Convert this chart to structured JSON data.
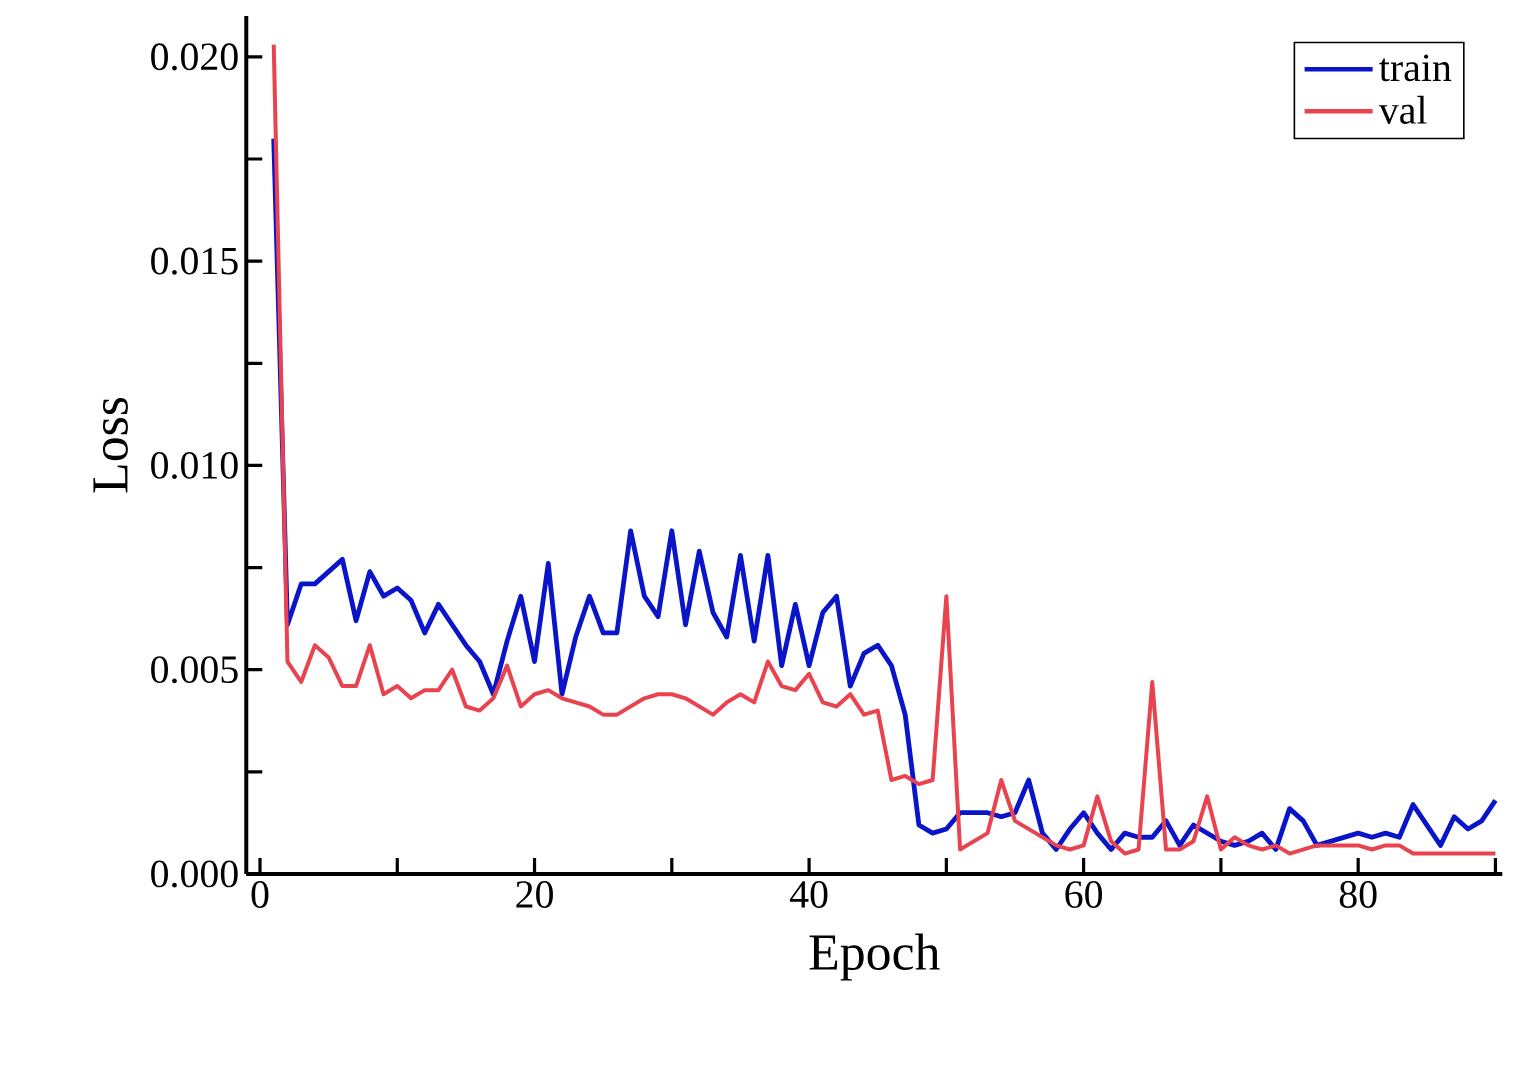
{
  "chart_data": {
    "type": "line",
    "xlabel": "Epoch",
    "ylabel": "Loss",
    "x": [
      1,
      2,
      3,
      4,
      5,
      6,
      7,
      8,
      9,
      10,
      11,
      12,
      13,
      14,
      15,
      16,
      17,
      18,
      19,
      20,
      21,
      22,
      23,
      24,
      25,
      26,
      27,
      28,
      29,
      30,
      31,
      32,
      33,
      34,
      35,
      36,
      37,
      38,
      39,
      40,
      41,
      42,
      43,
      44,
      45,
      46,
      47,
      48,
      49,
      50,
      51,
      52,
      53,
      54,
      55,
      56,
      57,
      58,
      59,
      60,
      61,
      62,
      63,
      64,
      65,
      66,
      67,
      68,
      69,
      70,
      71,
      72,
      73,
      74,
      75,
      76,
      77,
      78,
      79,
      80,
      81,
      82,
      83,
      84,
      85,
      86,
      87,
      88,
      89,
      90
    ],
    "series": [
      {
        "name": "train",
        "color": "#0a14c8",
        "values": [
          0.018,
          0.0061,
          0.0071,
          0.0071,
          0.0074,
          0.0077,
          0.0062,
          0.0074,
          0.0068,
          0.007,
          0.0067,
          0.0059,
          0.0066,
          0.0061,
          0.0056,
          0.0052,
          0.0044,
          0.0057,
          0.0068,
          0.0052,
          0.0076,
          0.0044,
          0.0058,
          0.0068,
          0.0059,
          0.0059,
          0.0084,
          0.0068,
          0.0063,
          0.0084,
          0.0061,
          0.0079,
          0.0064,
          0.0058,
          0.0078,
          0.0057,
          0.0078,
          0.0051,
          0.0066,
          0.0051,
          0.0064,
          0.0068,
          0.0046,
          0.0054,
          0.0056,
          0.0051,
          0.0039,
          0.0012,
          0.001,
          0.0011,
          0.0015,
          0.0015,
          0.0015,
          0.0014,
          0.0015,
          0.0023,
          0.001,
          0.0006,
          0.0011,
          0.0015,
          0.001,
          0.0006,
          0.001,
          0.0009,
          0.0009,
          0.0013,
          0.0007,
          0.0012,
          0.001,
          0.0008,
          0.0007,
          0.0008,
          0.001,
          0.0006,
          0.0016,
          0.0013,
          0.0007,
          0.0008,
          0.0009,
          0.001,
          0.0009,
          0.001,
          0.0009,
          0.0017,
          0.0012,
          0.0007,
          0.0014,
          0.0011,
          0.0013,
          0.0018
        ]
      },
      {
        "name": "val",
        "color": "#e8434f",
        "values": [
          0.0203,
          0.0052,
          0.0047,
          0.0056,
          0.0053,
          0.0046,
          0.0046,
          0.0056,
          0.0044,
          0.0046,
          0.0043,
          0.0045,
          0.0045,
          0.005,
          0.0041,
          0.004,
          0.0043,
          0.0051,
          0.0041,
          0.0044,
          0.0045,
          0.0043,
          0.0042,
          0.0041,
          0.0039,
          0.0039,
          0.0041,
          0.0043,
          0.0044,
          0.0044,
          0.0043,
          0.0041,
          0.0039,
          0.0042,
          0.0044,
          0.0042,
          0.0052,
          0.0046,
          0.0045,
          0.0049,
          0.0042,
          0.0041,
          0.0044,
          0.0039,
          0.004,
          0.0023,
          0.0024,
          0.0022,
          0.0023,
          0.0068,
          0.0006,
          0.0008,
          0.001,
          0.0023,
          0.0013,
          0.0011,
          0.0009,
          0.0007,
          0.0006,
          0.0007,
          0.0019,
          0.0008,
          0.0005,
          0.0006,
          0.0047,
          0.0006,
          0.0006,
          0.0008,
          0.0019,
          0.0006,
          0.0009,
          0.0007,
          0.0006,
          0.0007,
          0.0005,
          0.0006,
          0.0007,
          0.0007,
          0.0007,
          0.0007,
          0.0006,
          0.0007,
          0.0007,
          0.0005,
          0.0005,
          0.0005,
          0.0005,
          0.0005,
          0.0005,
          0.0005
        ]
      }
    ],
    "xlim": [
      -1,
      90.5
    ],
    "ylim": [
      0,
      0.021
    ],
    "xticks": [
      0,
      {
        "value": 10,
        "label": null
      },
      20,
      {
        "value": 30,
        "label": null
      },
      40,
      {
        "value": 50,
        "label": null
      },
      60,
      {
        "value": 70,
        "label": null
      },
      80,
      {
        "value": 90,
        "label": null
      }
    ],
    "yticks": [
      {
        "value": 0,
        "label": "0.000"
      },
      {
        "value": 0.0025,
        "label": null
      },
      {
        "value": 0.005,
        "label": "0.005"
      },
      {
        "value": 0.0075,
        "label": null
      },
      {
        "value": 0.01,
        "label": "0.010"
      },
      {
        "value": 0.0125,
        "label": null
      },
      {
        "value": 0.015,
        "label": "0.015"
      },
      {
        "value": 0.0175,
        "label": null
      },
      {
        "value": 0.02,
        "label": "0.020"
      }
    ],
    "grid": false,
    "legend": "top right",
    "marker": "none",
    "line_style": "solid"
  }
}
